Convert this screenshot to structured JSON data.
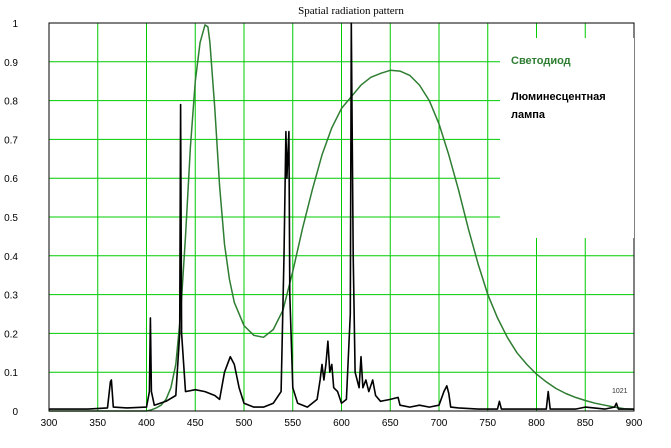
{
  "chart_data": {
    "type": "line",
    "title": "Spatial radiation pattern",
    "xlabel": "",
    "ylabel": "",
    "xlim": [
      300,
      900
    ],
    "ylim": [
      0,
      1
    ],
    "xticks": [
      "300",
      "350",
      "400",
      "450",
      "500",
      "550",
      "600",
      "650",
      "700",
      "750",
      "800",
      "850",
      "900"
    ],
    "yticks": [
      "0",
      "0.1",
      "0.2",
      "0.3",
      "0.4",
      "0.5",
      "0.6",
      "0.7",
      "0.8",
      "0.9",
      "1"
    ],
    "grid": true,
    "grid_color": "#00cc00",
    "legend_placement": "top-right",
    "corner_note": "1021",
    "series": [
      {
        "name": "Светодиод",
        "color": "#2e7d32",
        "points": [
          [
            300,
            0
          ],
          [
            400,
            0
          ],
          [
            405,
            0.003
          ],
          [
            410,
            0.008
          ],
          [
            415,
            0.015
          ],
          [
            420,
            0.03
          ],
          [
            425,
            0.06
          ],
          [
            430,
            0.12
          ],
          [
            435,
            0.25
          ],
          [
            440,
            0.45
          ],
          [
            445,
            0.68
          ],
          [
            450,
            0.85
          ],
          [
            455,
            0.95
          ],
          [
            460,
            0.995
          ],
          [
            463,
            0.99
          ],
          [
            465,
            0.95
          ],
          [
            470,
            0.78
          ],
          [
            475,
            0.58
          ],
          [
            480,
            0.43
          ],
          [
            485,
            0.34
          ],
          [
            490,
            0.28
          ],
          [
            500,
            0.22
          ],
          [
            510,
            0.195
          ],
          [
            520,
            0.19
          ],
          [
            530,
            0.21
          ],
          [
            540,
            0.26
          ],
          [
            550,
            0.36
          ],
          [
            560,
            0.47
          ],
          [
            570,
            0.57
          ],
          [
            580,
            0.66
          ],
          [
            590,
            0.73
          ],
          [
            600,
            0.78
          ],
          [
            610,
            0.81
          ],
          [
            620,
            0.84
          ],
          [
            630,
            0.86
          ],
          [
            640,
            0.87
          ],
          [
            650,
            0.878
          ],
          [
            660,
            0.876
          ],
          [
            670,
            0.865
          ],
          [
            680,
            0.84
          ],
          [
            690,
            0.8
          ],
          [
            700,
            0.74
          ],
          [
            710,
            0.66
          ],
          [
            720,
            0.57
          ],
          [
            730,
            0.47
          ],
          [
            740,
            0.38
          ],
          [
            750,
            0.3
          ],
          [
            760,
            0.24
          ],
          [
            770,
            0.19
          ],
          [
            780,
            0.15
          ],
          [
            790,
            0.12
          ],
          [
            800,
            0.095
          ],
          [
            810,
            0.075
          ],
          [
            820,
            0.058
          ],
          [
            830,
            0.045
          ],
          [
            840,
            0.035
          ],
          [
            850,
            0.027
          ],
          [
            860,
            0.02
          ],
          [
            870,
            0.015
          ],
          [
            880,
            0.01
          ],
          [
            890,
            0.006
          ],
          [
            900,
            0.004
          ]
        ]
      },
      {
        "name": "Люминесцентная лампа",
        "color": "#000000",
        "points": [
          [
            300,
            0.005
          ],
          [
            340,
            0.005
          ],
          [
            360,
            0.008
          ],
          [
            363,
            0.075
          ],
          [
            364,
            0.08
          ],
          [
            366,
            0.01
          ],
          [
            380,
            0.008
          ],
          [
            400,
            0.01
          ],
          [
            403,
            0.05
          ],
          [
            404,
            0.24
          ],
          [
            405,
            0.05
          ],
          [
            408,
            0.015
          ],
          [
            420,
            0.025
          ],
          [
            430,
            0.04
          ],
          [
            434,
            0.2
          ],
          [
            435,
            0.79
          ],
          [
            436,
            0.2
          ],
          [
            440,
            0.05
          ],
          [
            450,
            0.055
          ],
          [
            460,
            0.05
          ],
          [
            470,
            0.04
          ],
          [
            475,
            0.03
          ],
          [
            480,
            0.1
          ],
          [
            486,
            0.14
          ],
          [
            490,
            0.12
          ],
          [
            495,
            0.06
          ],
          [
            500,
            0.02
          ],
          [
            510,
            0.01
          ],
          [
            520,
            0.01
          ],
          [
            530,
            0.02
          ],
          [
            538,
            0.05
          ],
          [
            541,
            0.4
          ],
          [
            543,
            0.72
          ],
          [
            544,
            0.6
          ],
          [
            546,
            0.72
          ],
          [
            547,
            0.3
          ],
          [
            550,
            0.06
          ],
          [
            555,
            0.02
          ],
          [
            565,
            0.01
          ],
          [
            575,
            0.03
          ],
          [
            578,
            0.08
          ],
          [
            580,
            0.12
          ],
          [
            582,
            0.08
          ],
          [
            584,
            0.12
          ],
          [
            586,
            0.18
          ],
          [
            588,
            0.1
          ],
          [
            590,
            0.12
          ],
          [
            592,
            0.06
          ],
          [
            596,
            0.05
          ],
          [
            600,
            0.02
          ],
          [
            605,
            0.03
          ],
          [
            609,
            0.25
          ],
          [
            610,
            1.0
          ],
          [
            612,
            0.4
          ],
          [
            614,
            0.1
          ],
          [
            618,
            0.06
          ],
          [
            620,
            0.14
          ],
          [
            622,
            0.06
          ],
          [
            625,
            0.08
          ],
          [
            628,
            0.05
          ],
          [
            632,
            0.08
          ],
          [
            635,
            0.04
          ],
          [
            640,
            0.025
          ],
          [
            650,
            0.03
          ],
          [
            658,
            0.035
          ],
          [
            660,
            0.015
          ],
          [
            670,
            0.01
          ],
          [
            680,
            0.015
          ],
          [
            690,
            0.01
          ],
          [
            700,
            0.015
          ],
          [
            705,
            0.05
          ],
          [
            708,
            0.065
          ],
          [
            710,
            0.045
          ],
          [
            712,
            0.01
          ],
          [
            720,
            0.008
          ],
          [
            740,
            0.005
          ],
          [
            760,
            0.005
          ],
          [
            762,
            0.025
          ],
          [
            764,
            0.005
          ],
          [
            790,
            0.005
          ],
          [
            810,
            0.005
          ],
          [
            812,
            0.05
          ],
          [
            814,
            0.005
          ],
          [
            840,
            0.005
          ],
          [
            850,
            0.01
          ],
          [
            870,
            0.005
          ],
          [
            880,
            0.01
          ],
          [
            882,
            0.02
          ],
          [
            884,
            0.005
          ],
          [
            900,
            0.005
          ]
        ]
      }
    ]
  }
}
